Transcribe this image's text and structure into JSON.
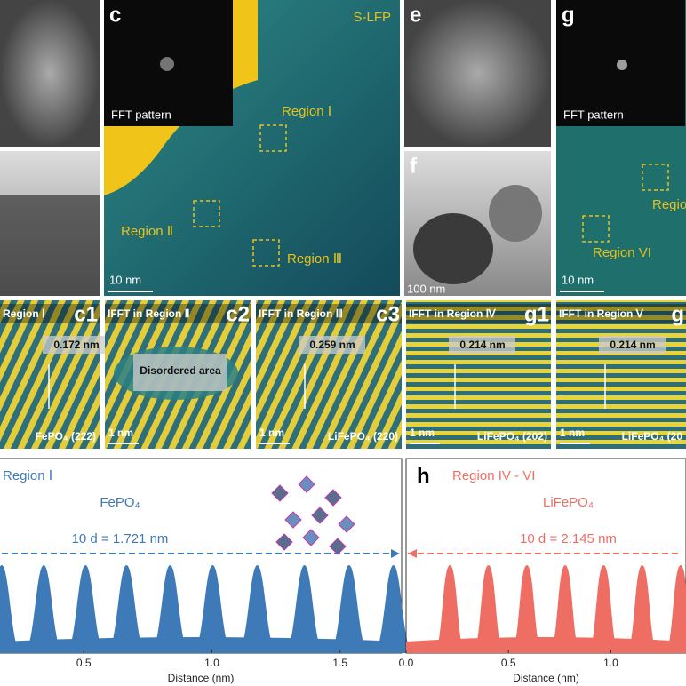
{
  "figure": {
    "top": {
      "c": "c",
      "s_lfp": "S-LFP",
      "fft_c": "FFT pattern",
      "region1": "Region Ⅰ",
      "region2": "Region Ⅱ",
      "region3": "Region Ⅲ",
      "scale_c": "10 nm",
      "e": "e",
      "f": "f",
      "scale_f": "100 nm",
      "g": "g",
      "fft_g": "FFT pattern",
      "region6": "Region VI",
      "region_cut": "Regio",
      "scale_g": "10 nm"
    },
    "middle": [
      {
        "title": "Region Ⅰ",
        "label": "c1",
        "spacing": "0.172 nm",
        "phase": "FePO₄ (222)"
      },
      {
        "title": "IFFT in Region Ⅱ",
        "label": "c2",
        "note": "Disordered area",
        "scale": "1 nm"
      },
      {
        "title": "IFFT in Region Ⅲ",
        "label": "c3",
        "spacing": "0.259 nm",
        "scale": "1 nm",
        "phase": "LiFePO₄ (220)"
      },
      {
        "title": "IFFT in Region Ⅳ",
        "label": "g1",
        "spacing": "0.214 nm",
        "scale": "1 nm",
        "phase": "LiFePO₄ (202)"
      },
      {
        "title": "IFFT in Region Ⅴ",
        "label": "g",
        "spacing": "0.214 nm",
        "scale": "1 nm",
        "phase": "LiFePO₄ (20"
      }
    ]
  },
  "chart_data": [
    {
      "type": "area",
      "title": "Region Ⅰ",
      "annotation": "FePO₄",
      "distance_label": "10 d = 1.721 nm",
      "x_label": "Distance (nm)",
      "color": "#3f7ab8",
      "peaks": [
        0.18,
        0.344,
        0.507,
        0.667,
        0.837,
        1.003,
        1.177,
        1.361,
        1.535,
        1.708
      ],
      "xlim": [
        0.17,
        1.74
      ],
      "xticks": [
        0.5,
        {
          "value": 1,
          "label": "1.0"
        },
        1.5
      ]
    },
    {
      "type": "area",
      "panel": "h",
      "title": "Region IV - VI",
      "annotation": "LiFePO₄",
      "distance_label": "10 d = 2.145 nm",
      "x_label": "Distance (nm)",
      "color": "#ee6e64",
      "peaks": [
        0.214,
        0.402,
        0.59,
        0.777,
        0.965,
        1.153,
        1.341
      ],
      "xlim": [
        0,
        1.367
      ],
      "xticks": [
        {
          "value": 0,
          "label": "0.0"
        },
        0.5,
        {
          "value": 1,
          "label": "1.0"
        }
      ]
    }
  ]
}
